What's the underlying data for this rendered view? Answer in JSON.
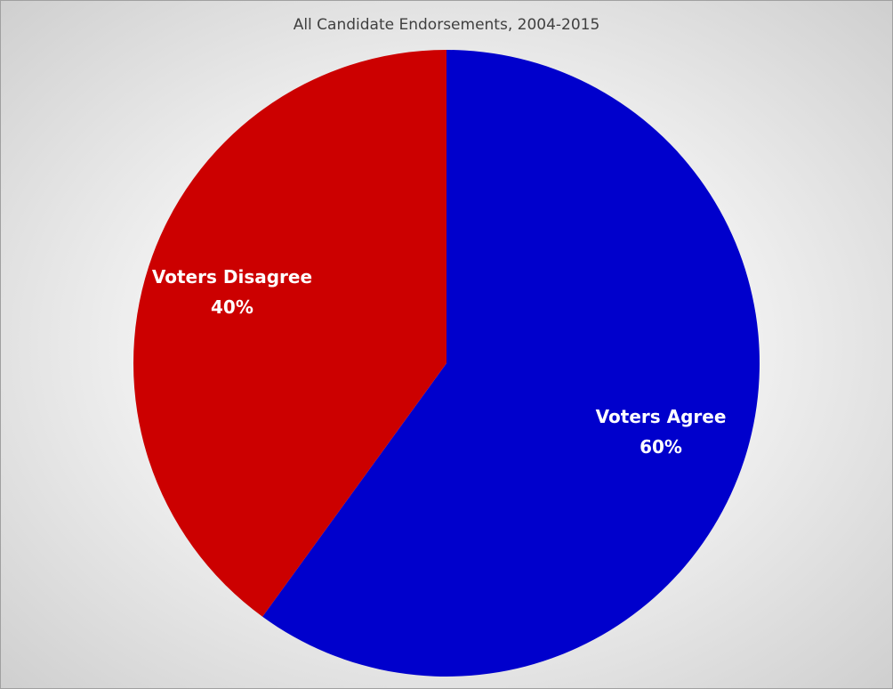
{
  "chart_data": {
    "type": "pie",
    "title": "All Candidate Endorsements, 2004-2015",
    "categories": [
      "Voters Agree",
      "Voters Disagree"
    ],
    "values": [
      60,
      40
    ],
    "value_labels": [
      "60%",
      "40%"
    ],
    "colors": [
      "#0000cc",
      "#cc0000"
    ]
  }
}
